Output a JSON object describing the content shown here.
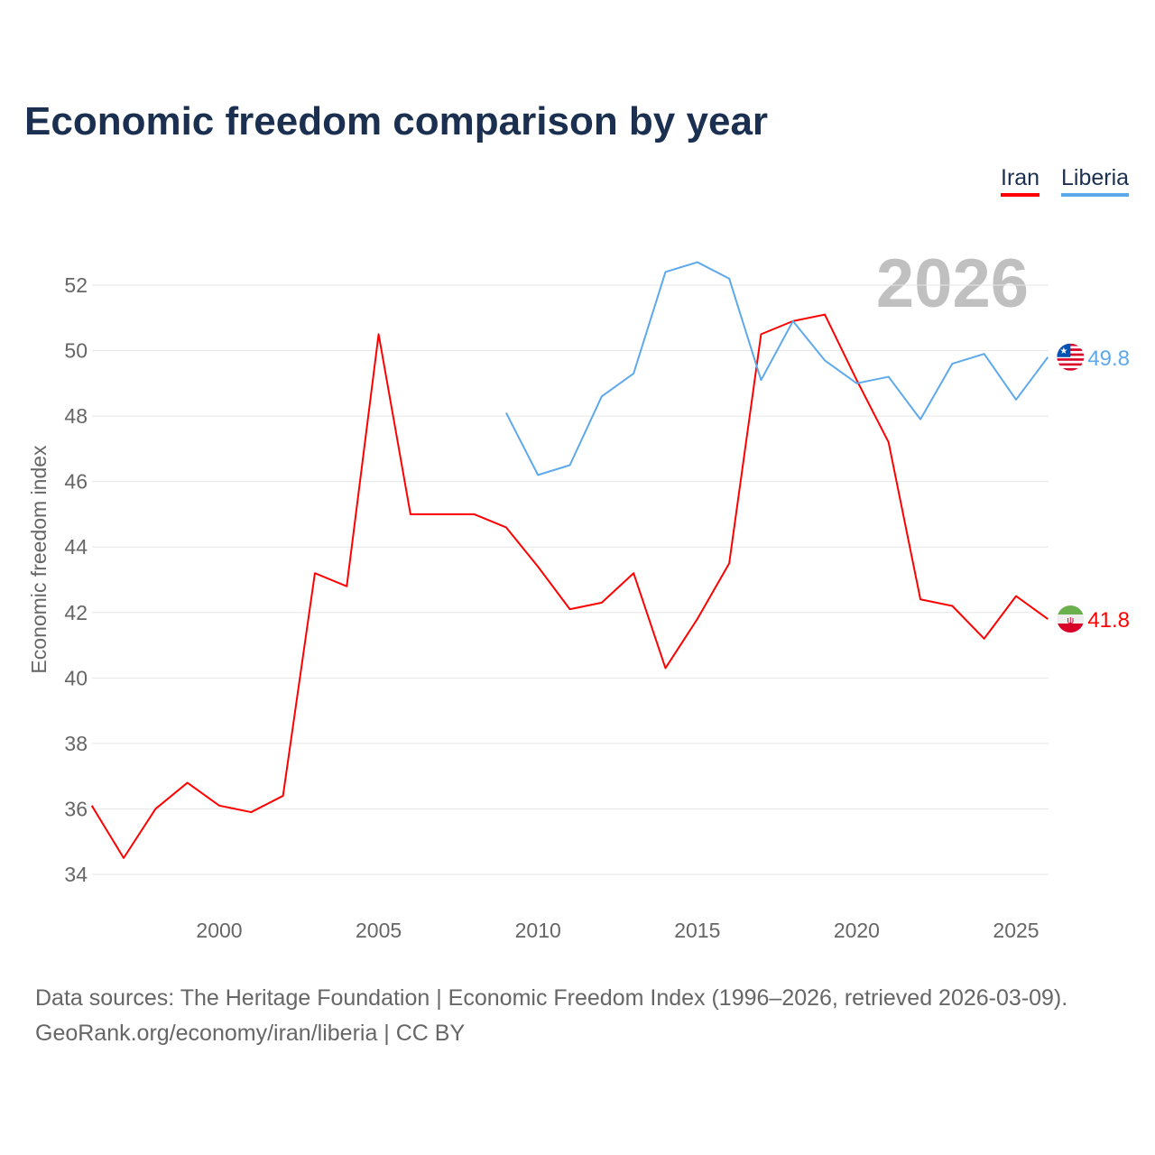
{
  "title": "Economic freedom comparison by year",
  "legend": [
    {
      "label": "Iran",
      "color": "#ff0000"
    },
    {
      "label": "Liberia",
      "color": "#5ea9ec"
    }
  ],
  "year_watermark": "2026",
  "source_line1": "Data sources: The Heritage Foundation | Economic Freedom Index (1996–2026, retrieved 2026-03-09).",
  "source_line2": "GeoRank.org/economy/iran/liberia | CC BY",
  "chart_data": {
    "type": "line",
    "title": "Economic freedom comparison by year",
    "xlabel": "",
    "ylabel": "Economic freedom index",
    "xlim": [
      1996,
      2026
    ],
    "ylim": [
      33,
      53
    ],
    "yticks": [
      34,
      36,
      38,
      40,
      42,
      44,
      46,
      48,
      50,
      52
    ],
    "xticks": [
      2000,
      2005,
      2010,
      2015,
      2020,
      2025
    ],
    "grid": true,
    "legend_placement": "top-right",
    "series": [
      {
        "name": "Iran",
        "color": "#ff0000",
        "end_label": "41.8",
        "flag": "iran-flag",
        "x": [
          1996,
          1997,
          1998,
          1999,
          2000,
          2001,
          2002,
          2003,
          2004,
          2005,
          2006,
          2007,
          2008,
          2009,
          2010,
          2011,
          2012,
          2013,
          2014,
          2015,
          2016,
          2017,
          2018,
          2019,
          2020,
          2021,
          2022,
          2023,
          2024,
          2025,
          2026
        ],
        "values": [
          36.1,
          34.5,
          36.0,
          36.8,
          36.1,
          35.9,
          36.4,
          43.2,
          42.8,
          50.5,
          45.0,
          45.0,
          45.0,
          44.6,
          43.4,
          42.1,
          42.3,
          43.2,
          40.3,
          41.8,
          43.5,
          50.5,
          50.9,
          51.1,
          49.1,
          47.2,
          42.4,
          42.2,
          41.2,
          42.5,
          41.8
        ]
      },
      {
        "name": "Liberia",
        "color": "#5ea9ec",
        "end_label": "49.8",
        "flag": "liberia-flag",
        "x": [
          2009,
          2010,
          2011,
          2012,
          2013,
          2014,
          2015,
          2016,
          2017,
          2018,
          2019,
          2020,
          2021,
          2022,
          2023,
          2024,
          2025,
          2026
        ],
        "values": [
          48.1,
          46.2,
          46.5,
          48.6,
          49.3,
          52.4,
          52.7,
          52.2,
          49.1,
          50.9,
          49.7,
          49.0,
          49.2,
          47.9,
          49.6,
          49.9,
          48.5,
          49.8
        ]
      }
    ]
  }
}
